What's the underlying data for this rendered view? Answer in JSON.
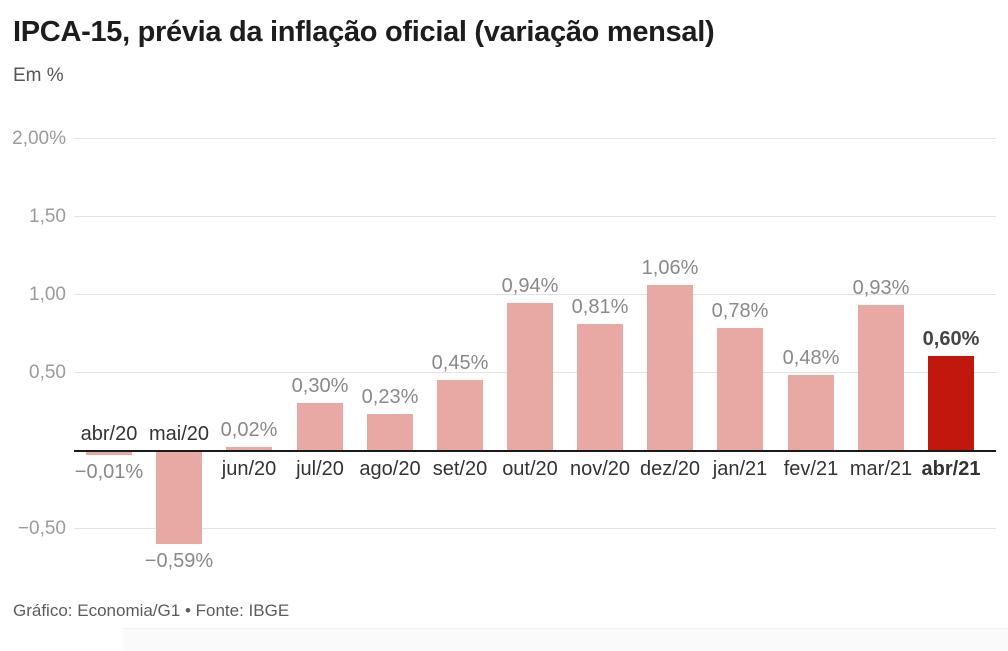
{
  "chart_data": {
    "type": "bar",
    "title": "IPCA-15, prévia da inflação oficial (variação mensal)",
    "subtitle": "Em %",
    "source": "Gráfico: Economia/G1 • Fonte: IBGE",
    "categories": [
      "abr/20",
      "mai/20",
      "jun/20",
      "jul/20",
      "ago/20",
      "set/20",
      "out/20",
      "nov/20",
      "dez/20",
      "jan/21",
      "fev/21",
      "mar/21",
      "abr/21"
    ],
    "values": [
      -0.01,
      -0.59,
      0.02,
      0.3,
      0.23,
      0.45,
      0.94,
      0.81,
      1.06,
      0.78,
      0.48,
      0.93,
      0.6
    ],
    "value_labels": [
      "−0,01%",
      "−0,59%",
      "0,02%",
      "0,30%",
      "0,23%",
      "0,45%",
      "0,94%",
      "0,81%",
      "1,06%",
      "0,78%",
      "0,48%",
      "0,93%",
      "0,60%"
    ],
    "highlight_index": 12,
    "xlabel": "",
    "ylabel": "Em %",
    "ylim": [
      -0.75,
      2.1
    ],
    "grid": true,
    "legend": false,
    "yticks": [
      {
        "value": 2.0,
        "label": "2,00%"
      },
      {
        "value": 1.5,
        "label": "1,50"
      },
      {
        "value": 1.0,
        "label": "1,00"
      },
      {
        "value": 0.5,
        "label": "0,50"
      },
      {
        "value": -0.5,
        "label": "−0,50"
      }
    ]
  },
  "colors": {
    "bar": "#e8a9a4",
    "highlight_bar": "#c1180d",
    "gridline": "#e3e3e3",
    "zero_axis": "#1a1a1a",
    "value_label": "#898989",
    "category_label": "#333333",
    "highlight_label": "#454545",
    "tick_label": "#9b9b9b",
    "title": "#1d1d1d",
    "background": "#ffffff"
  }
}
